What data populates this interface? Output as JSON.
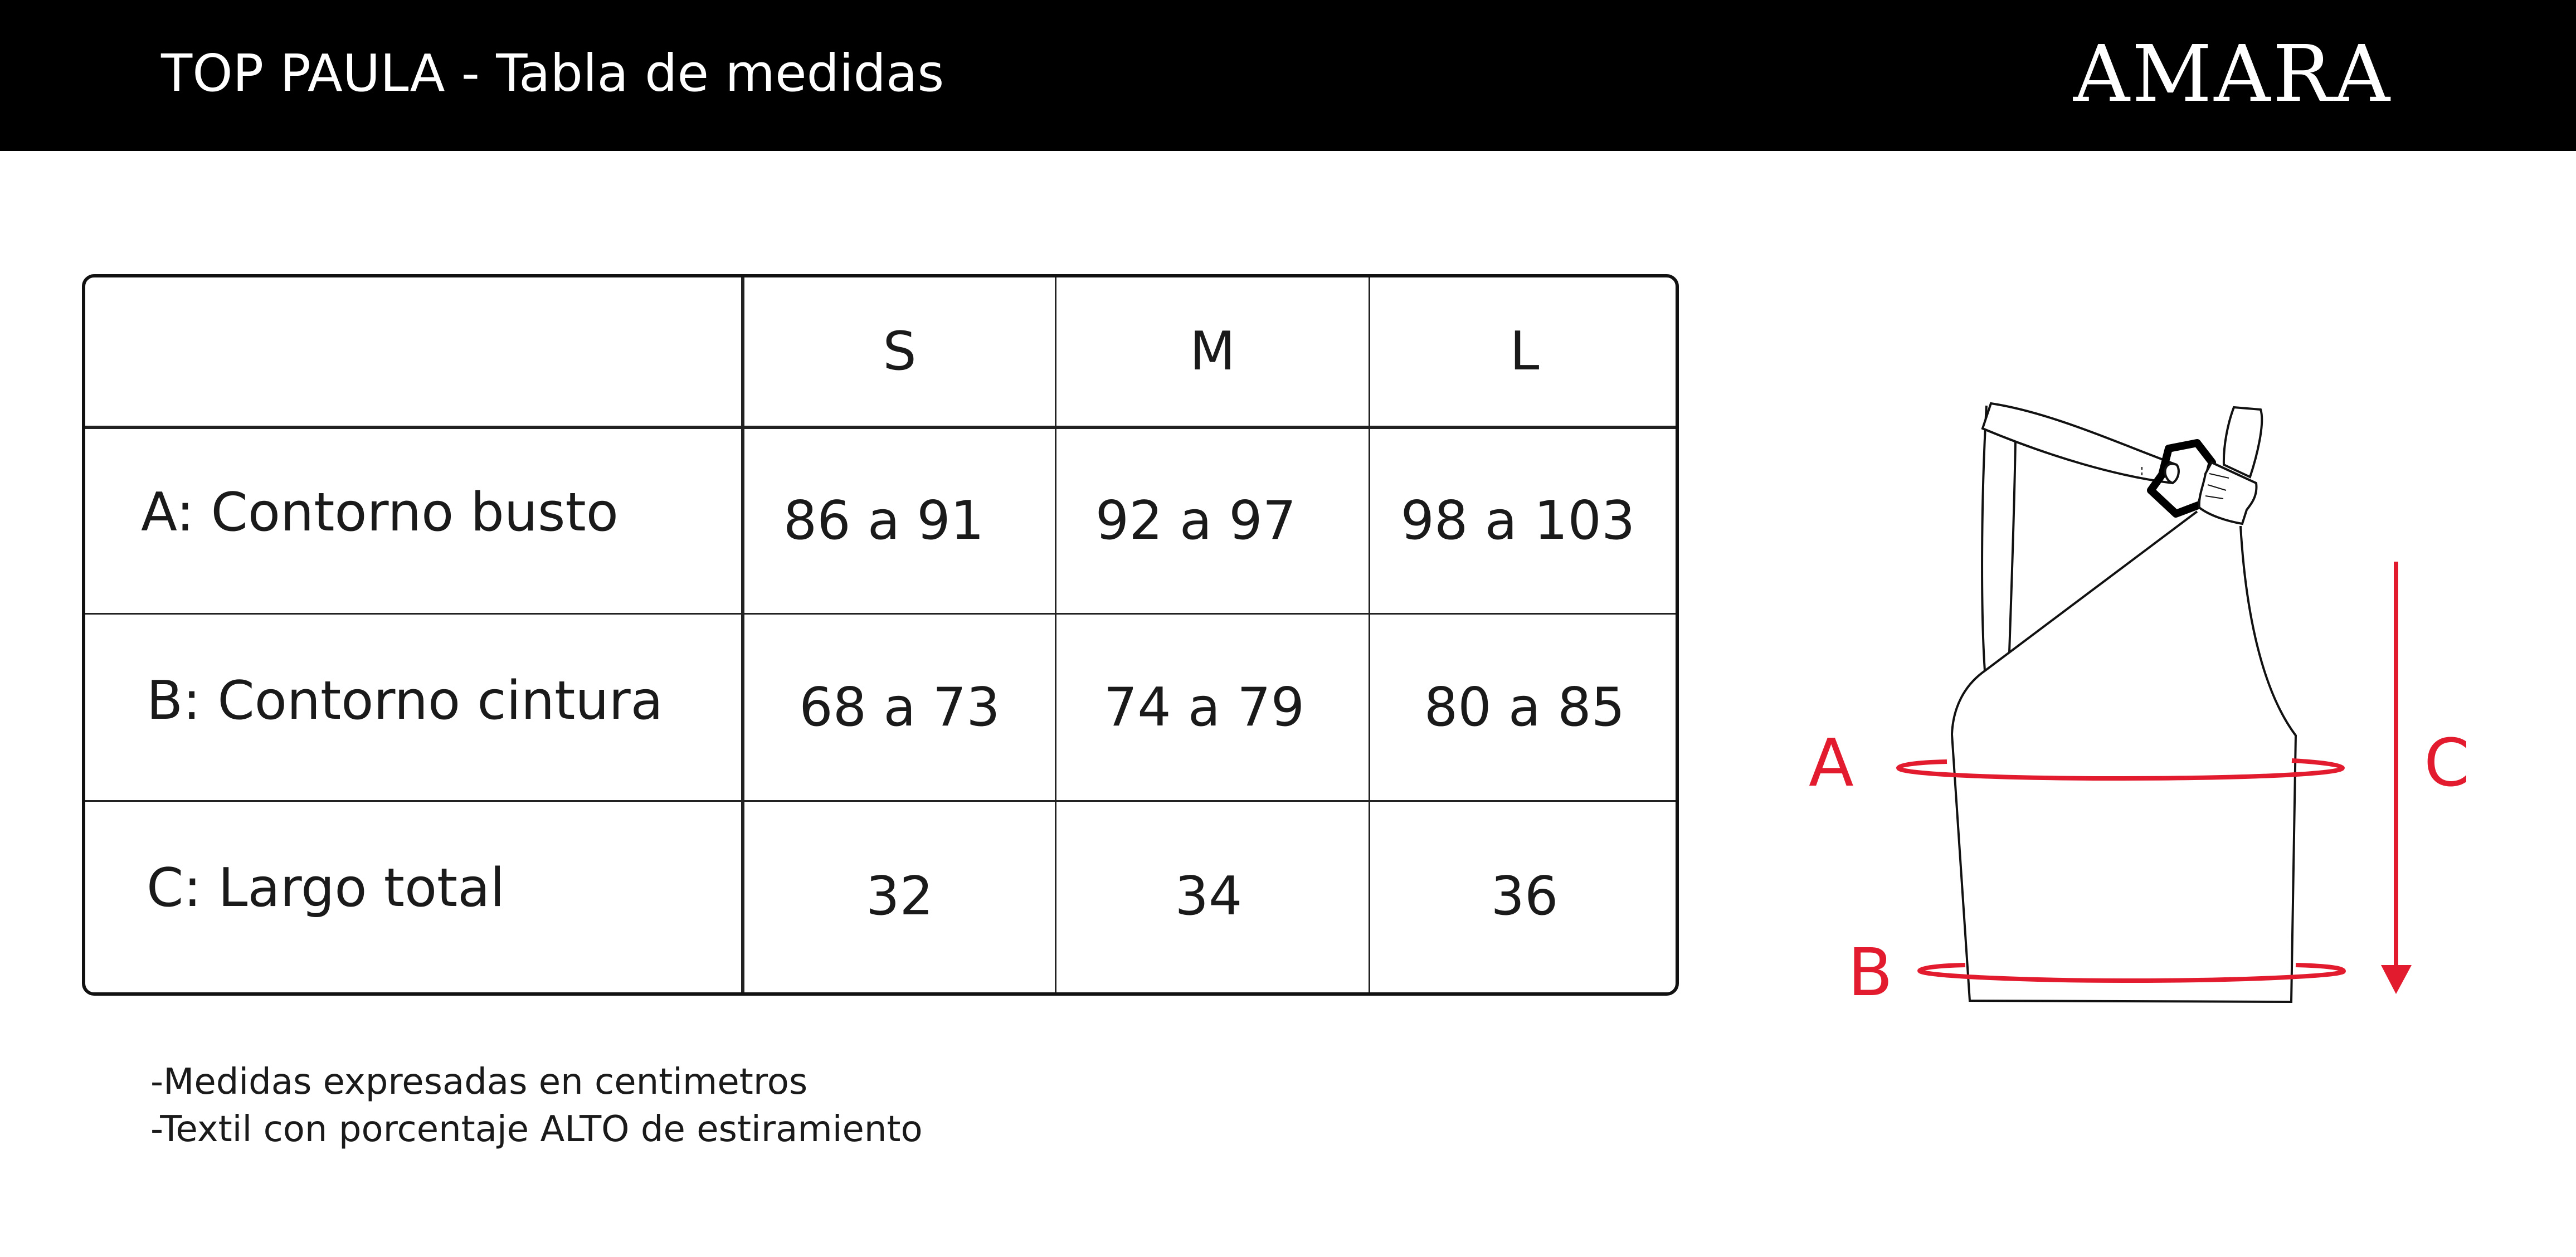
{
  "header": {
    "title": "TOP PAULA - Tabla de medidas",
    "brand": "AMARA"
  },
  "table": {
    "columns": [
      "S",
      "M",
      "L"
    ],
    "rows": [
      {
        "label": "A: Contorno busto",
        "values": [
          "86 a 91",
          "92 a 97",
          "98 a 103"
        ]
      },
      {
        "label": "B: Contorno cintura",
        "values": [
          "68 a 73",
          "74 a 79",
          "80 a 85"
        ]
      },
      {
        "label": "C: Largo total",
        "values": [
          "32",
          "34",
          "36"
        ]
      }
    ]
  },
  "notes": [
    "-Medidas expresadas en centimetros",
    "-Textil con porcentaje ALTO de estiramiento"
  ],
  "illustration": {
    "labels": {
      "a": "A",
      "b": "B",
      "c": "C"
    },
    "measure_color": "#e31b2e",
    "line_color": "#111111"
  }
}
